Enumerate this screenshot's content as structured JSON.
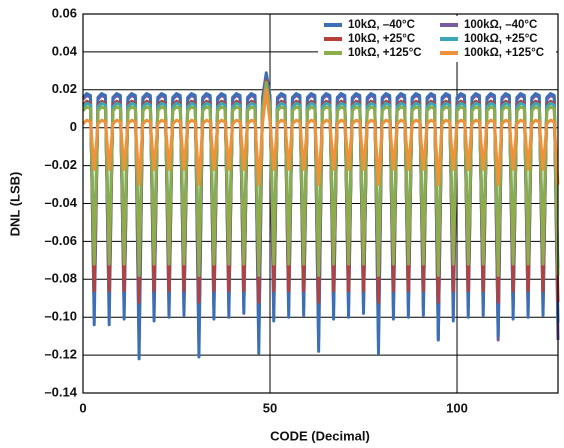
{
  "chart_data": {
    "type": "line",
    "xlabel": "CODE (Decimal)",
    "ylabel": "DNL (LSB)",
    "xlim": [
      0,
      127
    ],
    "ylim": [
      -0.14,
      0.06
    ],
    "xticks": [
      0,
      50,
      100
    ],
    "yticks": [
      {
        "value": 0.06,
        "label": "0.06"
      },
      {
        "value": 0.04,
        "label": "0.04"
      },
      {
        "value": 0.02,
        "label": "0.02"
      },
      0,
      {
        "value": -0.02,
        "label": "–0.02"
      },
      {
        "value": -0.04,
        "label": "–0.04"
      },
      {
        "value": -0.06,
        "label": "–0.06"
      },
      {
        "value": -0.08,
        "label": "–0.08"
      },
      {
        "value": -0.1,
        "label": "–0.10"
      },
      {
        "value": -0.12,
        "label": "–0.12"
      },
      {
        "value": -0.14,
        "label": "–0.14"
      }
    ],
    "grid": true,
    "legend": "upper right",
    "x": [
      0,
      1,
      2,
      3,
      4,
      5,
      6,
      7,
      8,
      9,
      10,
      11,
      12,
      13,
      14,
      15,
      16,
      17,
      18,
      19,
      20,
      21,
      22,
      23,
      24,
      25,
      26,
      27,
      28,
      29,
      30,
      31,
      32,
      33,
      34,
      35,
      36,
      37,
      38,
      39,
      40,
      41,
      42,
      43,
      44,
      45,
      46,
      47,
      48,
      49,
      50,
      51,
      52,
      53,
      54,
      55,
      56,
      57,
      58,
      59,
      60,
      61,
      62,
      63,
      64,
      65,
      66,
      67,
      68,
      69,
      70,
      71,
      72,
      73,
      74,
      75,
      76,
      77,
      78,
      79,
      80,
      81,
      82,
      83,
      84,
      85,
      86,
      87,
      88,
      89,
      90,
      91,
      92,
      93,
      94,
      95,
      96,
      97,
      98,
      99,
      100,
      101,
      102,
      103,
      104,
      105,
      106,
      107,
      108,
      109,
      110,
      111,
      112,
      113,
      114,
      115,
      116,
      117,
      118,
      119,
      120,
      121,
      122,
      123,
      124,
      125,
      126,
      127
    ],
    "series": [
      {
        "name": "10kΩ, –40°C",
        "color": "#3d6fb6",
        "values": [
          0.016,
          0.018,
          0.017,
          -0.104,
          0.016,
          0.018,
          0.017,
          -0.104,
          0.016,
          0.018,
          0.017,
          -0.101,
          0.016,
          0.018,
          0.017,
          -0.122,
          0.016,
          0.018,
          0.017,
          -0.102,
          0.016,
          0.018,
          0.017,
          -0.1,
          0.016,
          0.018,
          0.017,
          -0.099,
          0.016,
          0.018,
          0.017,
          -0.121,
          0.016,
          0.018,
          0.017,
          -0.101,
          0.016,
          0.018,
          0.017,
          -0.1,
          0.016,
          0.018,
          0.017,
          -0.098,
          0.016,
          0.018,
          0.017,
          -0.119,
          0.016,
          0.029,
          0.017,
          -0.102,
          0.016,
          0.018,
          0.017,
          -0.1,
          0.016,
          0.018,
          0.017,
          -0.099,
          0.016,
          0.018,
          0.017,
          -0.118,
          0.016,
          0.018,
          0.017,
          -0.101,
          0.016,
          0.018,
          0.017,
          -0.1,
          0.016,
          0.018,
          0.017,
          -0.098,
          0.016,
          0.018,
          0.017,
          -0.119,
          0.016,
          0.018,
          0.017,
          -0.101,
          0.016,
          0.018,
          0.017,
          -0.1,
          0.016,
          0.018,
          0.017,
          -0.099,
          0.016,
          0.018,
          0.017,
          -0.112,
          0.016,
          0.018,
          0.017,
          -0.102,
          0.016,
          0.018,
          0.017,
          -0.1,
          0.016,
          0.018,
          0.017,
          -0.099,
          0.016,
          0.018,
          0.017,
          -0.11,
          0.016,
          0.018,
          0.017,
          -0.101,
          0.016,
          0.018,
          0.017,
          -0.1,
          0.016,
          0.018,
          0.017,
          -0.099,
          0.016,
          0.018,
          0.017,
          -0.103
        ]
      },
      {
        "name": "10kΩ, +25°C",
        "color": "#b8403b",
        "values": [
          0.012,
          0.014,
          0.013,
          -0.086,
          0.012,
          0.014,
          0.013,
          -0.086,
          0.012,
          0.014,
          0.013,
          -0.086,
          0.012,
          0.014,
          0.013,
          -0.092,
          0.012,
          0.014,
          0.013,
          -0.086,
          0.012,
          0.014,
          0.013,
          -0.086,
          0.012,
          0.014,
          0.013,
          -0.086,
          0.012,
          0.014,
          0.013,
          -0.092,
          0.012,
          0.014,
          0.013,
          -0.086,
          0.012,
          0.014,
          0.013,
          -0.086,
          0.012,
          0.014,
          0.013,
          -0.086,
          0.012,
          0.014,
          0.013,
          -0.092,
          0.012,
          0.025,
          0.013,
          -0.086,
          0.012,
          0.014,
          0.013,
          -0.086,
          0.012,
          0.014,
          0.013,
          -0.086,
          0.012,
          0.014,
          0.013,
          -0.092,
          0.012,
          0.014,
          0.013,
          -0.086,
          0.012,
          0.014,
          0.013,
          -0.086,
          0.012,
          0.014,
          0.013,
          -0.086,
          0.012,
          0.014,
          0.013,
          -0.092,
          0.012,
          0.014,
          0.013,
          -0.086,
          0.012,
          0.014,
          0.013,
          -0.086,
          0.012,
          0.014,
          0.013,
          -0.086,
          0.012,
          0.014,
          0.013,
          -0.092,
          0.012,
          0.014,
          0.013,
          -0.086,
          0.012,
          0.014,
          0.013,
          -0.086,
          0.012,
          0.014,
          0.013,
          -0.086,
          0.012,
          0.014,
          0.013,
          -0.092,
          0.012,
          0.014,
          0.013,
          -0.086,
          0.012,
          0.014,
          0.013,
          -0.086,
          0.012,
          0.014,
          0.013,
          -0.086,
          0.012,
          0.014,
          0.013,
          -0.092
        ]
      },
      {
        "name": "10kΩ, +125°C",
        "color": "#8cad4b",
        "values": [
          0.009,
          0.011,
          0.01,
          -0.072,
          0.009,
          0.011,
          0.01,
          -0.072,
          0.009,
          0.011,
          0.01,
          -0.072,
          0.009,
          0.011,
          0.01,
          -0.078,
          0.009,
          0.011,
          0.01,
          -0.072,
          0.009,
          0.011,
          0.01,
          -0.072,
          0.009,
          0.011,
          0.01,
          -0.072,
          0.009,
          0.011,
          0.01,
          -0.078,
          0.009,
          0.011,
          0.01,
          -0.072,
          0.009,
          0.011,
          0.01,
          -0.072,
          0.009,
          0.011,
          0.01,
          -0.072,
          0.009,
          0.011,
          0.01,
          -0.078,
          0.009,
          0.024,
          0.01,
          -0.072,
          0.009,
          0.011,
          0.01,
          -0.072,
          0.009,
          0.011,
          0.01,
          -0.072,
          0.009,
          0.011,
          0.01,
          -0.078,
          0.009,
          0.011,
          0.01,
          -0.072,
          0.009,
          0.011,
          0.01,
          -0.072,
          0.009,
          0.011,
          0.01,
          -0.072,
          0.009,
          0.011,
          0.01,
          -0.078,
          0.009,
          0.011,
          0.01,
          -0.072,
          0.009,
          0.011,
          0.01,
          -0.072,
          0.009,
          0.011,
          0.01,
          -0.072,
          0.009,
          0.011,
          0.01,
          -0.078,
          0.009,
          0.011,
          0.01,
          -0.072,
          0.009,
          0.011,
          0.01,
          -0.072,
          0.009,
          0.011,
          0.01,
          -0.072,
          0.009,
          0.011,
          0.01,
          -0.078,
          0.009,
          0.011,
          0.01,
          -0.072,
          0.009,
          0.011,
          0.01,
          -0.072,
          0.009,
          0.011,
          0.01,
          -0.072,
          0.009,
          0.011,
          0.01,
          -0.078
        ]
      },
      {
        "name": "100kΩ, –40°C",
        "color": "#7a5aa0",
        "values": [
          0.015,
          0.017,
          0.016,
          -0.095,
          0.015,
          0.017,
          0.016,
          -0.095,
          0.015,
          0.017,
          0.016,
          -0.095,
          0.015,
          0.017,
          0.016,
          -0.112,
          0.015,
          0.017,
          0.016,
          -0.095,
          0.015,
          0.017,
          0.016,
          -0.095,
          0.015,
          0.017,
          0.016,
          -0.095,
          0.015,
          0.017,
          0.016,
          -0.112,
          0.015,
          0.017,
          0.016,
          -0.095,
          0.015,
          0.017,
          0.016,
          -0.095,
          0.015,
          0.017,
          0.016,
          -0.095,
          0.015,
          0.017,
          0.016,
          -0.112,
          0.015,
          0.026,
          0.016,
          -0.095,
          0.015,
          0.017,
          0.016,
          -0.095,
          0.015,
          0.017,
          0.016,
          -0.095,
          0.015,
          0.017,
          0.016,
          -0.112,
          0.015,
          0.017,
          0.016,
          -0.095,
          0.015,
          0.017,
          0.016,
          -0.095,
          0.015,
          0.017,
          0.016,
          -0.095,
          0.015,
          0.017,
          0.016,
          -0.112,
          0.015,
          0.017,
          0.016,
          -0.095,
          0.015,
          0.017,
          0.016,
          -0.095,
          0.015,
          0.017,
          0.016,
          -0.095,
          0.015,
          0.017,
          0.016,
          -0.112,
          0.015,
          0.017,
          0.016,
          -0.095,
          0.015,
          0.017,
          0.016,
          -0.095,
          0.015,
          0.017,
          0.016,
          -0.095,
          0.015,
          0.017,
          0.016,
          -0.112,
          0.015,
          0.017,
          0.016,
          -0.095,
          0.015,
          0.017,
          0.016,
          -0.095,
          0.015,
          0.017,
          0.016,
          -0.095,
          0.015,
          0.017,
          0.016,
          -0.112
        ]
      },
      {
        "name": "100kΩ, +25°C",
        "color": "#3aa6b8",
        "values": [
          0.011,
          0.013,
          0.012,
          -0.068,
          0.011,
          0.013,
          0.012,
          -0.068,
          0.011,
          0.013,
          0.012,
          -0.068,
          0.011,
          0.013,
          0.012,
          -0.074,
          0.011,
          0.013,
          0.012,
          -0.068,
          0.011,
          0.013,
          0.012,
          -0.068,
          0.011,
          0.013,
          0.012,
          -0.068,
          0.011,
          0.013,
          0.012,
          -0.074,
          0.011,
          0.013,
          0.012,
          -0.068,
          0.011,
          0.013,
          0.012,
          -0.068,
          0.011,
          0.013,
          0.012,
          -0.068,
          0.011,
          0.013,
          0.012,
          -0.074,
          0.011,
          0.023,
          0.012,
          -0.068,
          0.011,
          0.013,
          0.012,
          -0.068,
          0.011,
          0.013,
          0.012,
          -0.068,
          0.011,
          0.013,
          0.012,
          -0.074,
          0.011,
          0.013,
          0.012,
          -0.068,
          0.011,
          0.013,
          0.012,
          -0.068,
          0.011,
          0.013,
          0.012,
          -0.068,
          0.011,
          0.013,
          0.012,
          -0.074,
          0.011,
          0.013,
          0.012,
          -0.068,
          0.011,
          0.013,
          0.012,
          -0.068,
          0.011,
          0.013,
          0.012,
          -0.068,
          0.011,
          0.013,
          0.012,
          -0.074,
          0.011,
          0.013,
          0.012,
          -0.068,
          0.011,
          0.013,
          0.012,
          -0.068,
          0.011,
          0.013,
          0.012,
          -0.068,
          0.011,
          0.013,
          0.012,
          -0.074,
          0.011,
          0.013,
          0.012,
          -0.068,
          0.011,
          0.013,
          0.012,
          -0.068,
          0.011,
          0.013,
          0.012,
          -0.068,
          0.011,
          0.013,
          0.012,
          -0.074
        ]
      },
      {
        "name": "100kΩ, +125°C",
        "color": "#f0923b",
        "values": [
          0.002,
          0.004,
          0.003,
          -0.022,
          0.002,
          0.004,
          0.003,
          -0.022,
          0.002,
          0.004,
          0.003,
          -0.022,
          0.002,
          0.004,
          0.003,
          -0.03,
          0.002,
          0.004,
          0.003,
          -0.022,
          0.002,
          0.004,
          0.003,
          -0.022,
          0.002,
          0.004,
          0.003,
          -0.022,
          0.002,
          0.004,
          0.003,
          -0.03,
          0.002,
          0.004,
          0.003,
          -0.022,
          0.002,
          0.004,
          0.003,
          -0.022,
          0.002,
          0.004,
          0.003,
          -0.022,
          0.002,
          0.004,
          0.003,
          -0.03,
          0.002,
          0.02,
          0.003,
          -0.022,
          0.002,
          0.004,
          0.003,
          -0.022,
          0.002,
          0.004,
          0.003,
          -0.022,
          0.002,
          0.004,
          0.003,
          -0.03,
          0.002,
          0.004,
          0.003,
          -0.022,
          0.002,
          0.004,
          0.003,
          -0.022,
          0.002,
          0.004,
          0.003,
          -0.022,
          0.002,
          0.004,
          0.003,
          -0.03,
          0.002,
          0.004,
          0.003,
          -0.022,
          0.002,
          0.004,
          0.003,
          -0.022,
          0.002,
          0.004,
          0.003,
          -0.022,
          0.002,
          0.004,
          0.003,
          -0.03,
          0.002,
          0.004,
          0.003,
          -0.022,
          0.002,
          0.004,
          0.003,
          -0.022,
          0.002,
          0.004,
          0.003,
          -0.022,
          0.002,
          0.004,
          0.003,
          -0.03,
          0.002,
          0.004,
          0.003,
          -0.022,
          0.002,
          0.004,
          0.003,
          -0.022,
          0.002,
          0.004,
          0.003,
          -0.022,
          0.002,
          0.004,
          0.003,
          -0.03
        ]
      }
    ]
  }
}
